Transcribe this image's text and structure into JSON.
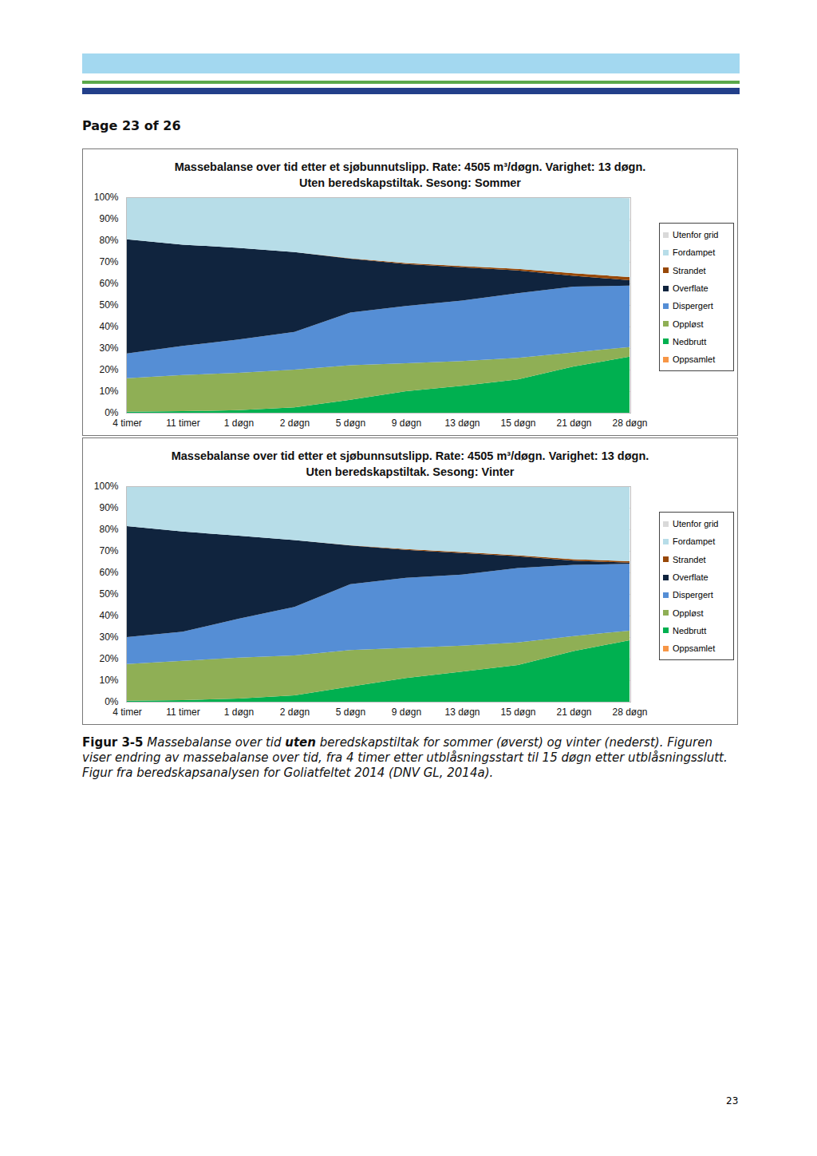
{
  "header": {
    "page_label": "Page 23 of 26"
  },
  "chart_data": [
    {
      "type": "area",
      "stacked": true,
      "title": "Massebalanse over tid etter et sjøbunnutslipp. Rate: 4505 m³/døgn. Varighet: 13 døgn.",
      "subtitle": "Uten beredskapstiltak. Sesong: Sommer",
      "categories": [
        "4 timer",
        "11 timer",
        "1 døgn",
        "2 døgn",
        "5 døgn",
        "9 døgn",
        "13 døgn",
        "15 døgn",
        "21 døgn",
        "28 døgn"
      ],
      "ylim": [
        0,
        100
      ],
      "yticks": [
        {
          "value": 0,
          "label": "0%"
        },
        {
          "value": 10,
          "label": "10%"
        },
        {
          "value": 20,
          "label": "20%"
        },
        {
          "value": 30,
          "label": "30%"
        },
        {
          "value": 40,
          "label": "40%"
        },
        {
          "value": 50,
          "label": "50%"
        },
        {
          "value": 60,
          "label": "60%"
        },
        {
          "value": 70,
          "label": "70%"
        },
        {
          "value": 80,
          "label": "80%"
        },
        {
          "value": 90,
          "label": "90%"
        },
        {
          "value": 100,
          "label": "100%"
        }
      ],
      "grid": true,
      "legend": "right",
      "series": [
        {
          "name": "Oppsamlet",
          "color": "#f79646",
          "values": [
            0,
            0,
            0,
            0,
            0,
            0,
            0,
            0,
            0,
            0
          ]
        },
        {
          "name": "Nedbrutt",
          "color": "#00b050",
          "values": [
            0.5,
            0.7,
            1.2,
            2.5,
            6,
            10,
            12.5,
            15.5,
            21.5,
            26
          ]
        },
        {
          "name": "Oppløst",
          "color": "#8faf55",
          "values": [
            15.5,
            16.8,
            17.3,
            17.5,
            16,
            13,
            11.5,
            10,
            6.5,
            4.5
          ]
        },
        {
          "name": "Dispergert",
          "color": "#558ed5",
          "values": [
            11.5,
            13.5,
            15.5,
            17.5,
            24.5,
            26.5,
            28,
            30,
            30.5,
            28.5
          ]
        },
        {
          "name": "Overflate",
          "color": "#10243e",
          "values": [
            53,
            47,
            42.5,
            37,
            25,
            19.5,
            15.5,
            10.5,
            5,
            2.5
          ]
        },
        {
          "name": "Strandet",
          "color": "#984807",
          "values": [
            0,
            0,
            0,
            0,
            0.2,
            0.4,
            0.6,
            0.8,
            1.2,
            1.5
          ]
        },
        {
          "name": "Fordampet",
          "color": "#b7dde8",
          "values": [
            19.5,
            22,
            23.5,
            25.5,
            28.3,
            30.6,
            31.9,
            33.2,
            35.3,
            36.5
          ]
        },
        {
          "name": "Utenfor grid",
          "color": "#d9d9d9",
          "values": [
            0,
            0,
            0,
            0,
            0,
            0,
            0,
            0,
            0,
            0.5
          ]
        }
      ]
    },
    {
      "type": "area",
      "stacked": true,
      "title": "Massebalanse over tid etter et sjøbunnsutslipp. Rate: 4505 m³/døgn. Varighet: 13 døgn.",
      "subtitle": "Uten beredskapstiltak. Sesong: Vinter",
      "categories": [
        "4 timer",
        "11 timer",
        "1 døgn",
        "2 døgn",
        "5 døgn",
        "9 døgn",
        "13 døgn",
        "15 døgn",
        "21 døgn",
        "28 døgn"
      ],
      "ylim": [
        0,
        100
      ],
      "yticks": [
        {
          "value": 0,
          "label": "0%"
        },
        {
          "value": 10,
          "label": "10%"
        },
        {
          "value": 20,
          "label": "20%"
        },
        {
          "value": 30,
          "label": "30%"
        },
        {
          "value": 40,
          "label": "40%"
        },
        {
          "value": 50,
          "label": "50%"
        },
        {
          "value": 60,
          "label": "60%"
        },
        {
          "value": 70,
          "label": "70%"
        },
        {
          "value": 80,
          "label": "80%"
        },
        {
          "value": 90,
          "label": "90%"
        },
        {
          "value": 100,
          "label": "100%"
        }
      ],
      "grid": true,
      "legend": "right",
      "series": [
        {
          "name": "Oppsamlet",
          "color": "#f79646",
          "values": [
            0,
            0,
            0,
            0,
            0,
            0,
            0,
            0,
            0,
            0
          ]
        },
        {
          "name": "Nedbrutt",
          "color": "#00b050",
          "values": [
            0.5,
            0.7,
            1.5,
            3,
            7,
            11,
            14,
            17,
            23.5,
            28.5
          ]
        },
        {
          "name": "Oppløst",
          "color": "#8faf55",
          "values": [
            17,
            18.3,
            19,
            18.5,
            17,
            14,
            12,
            10.5,
            7,
            4.5
          ]
        },
        {
          "name": "Dispergert",
          "color": "#558ed5",
          "values": [
            12.5,
            13.5,
            18,
            22.5,
            30.5,
            32.5,
            33,
            34.5,
            33,
            31
          ]
        },
        {
          "name": "Overflate",
          "color": "#10243e",
          "values": [
            51.5,
            46.5,
            38.5,
            31,
            18,
            13,
            10,
            5.5,
            2,
            0.5
          ]
        },
        {
          "name": "Strandet",
          "color": "#984807",
          "values": [
            0,
            0,
            0,
            0,
            0.1,
            0.3,
            0.4,
            0.5,
            0.6,
            0.7
          ]
        },
        {
          "name": "Fordampet",
          "color": "#b7dde8",
          "values": [
            18.5,
            21,
            23,
            25,
            27.4,
            29.2,
            30.6,
            32,
            33.9,
            34.8
          ]
        },
        {
          "name": "Utenfor grid",
          "color": "#d9d9d9",
          "values": [
            0,
            0,
            0,
            0,
            0,
            0,
            0,
            0,
            0,
            0
          ]
        }
      ]
    }
  ],
  "caption": {
    "parts": [
      {
        "text": "Figur 3-5",
        "style": "bold"
      },
      {
        "text": " Massebalanse over tid ",
        "style": "italic"
      },
      {
        "text": "uten",
        "style": "bold-italic"
      },
      {
        "text": " beredskapstiltak for sommer (øverst) og vinter (nederst). Figuren viser endring av massebalanse over tid, fra 4 timer etter utblåsningsstart til 15 døgn etter utblåsningsslutt. Figur fra beredskapsanalysen for Goliatfeltet 2014 (DNV GL, 2014a).",
        "style": "italic"
      }
    ]
  },
  "page_number": "23"
}
